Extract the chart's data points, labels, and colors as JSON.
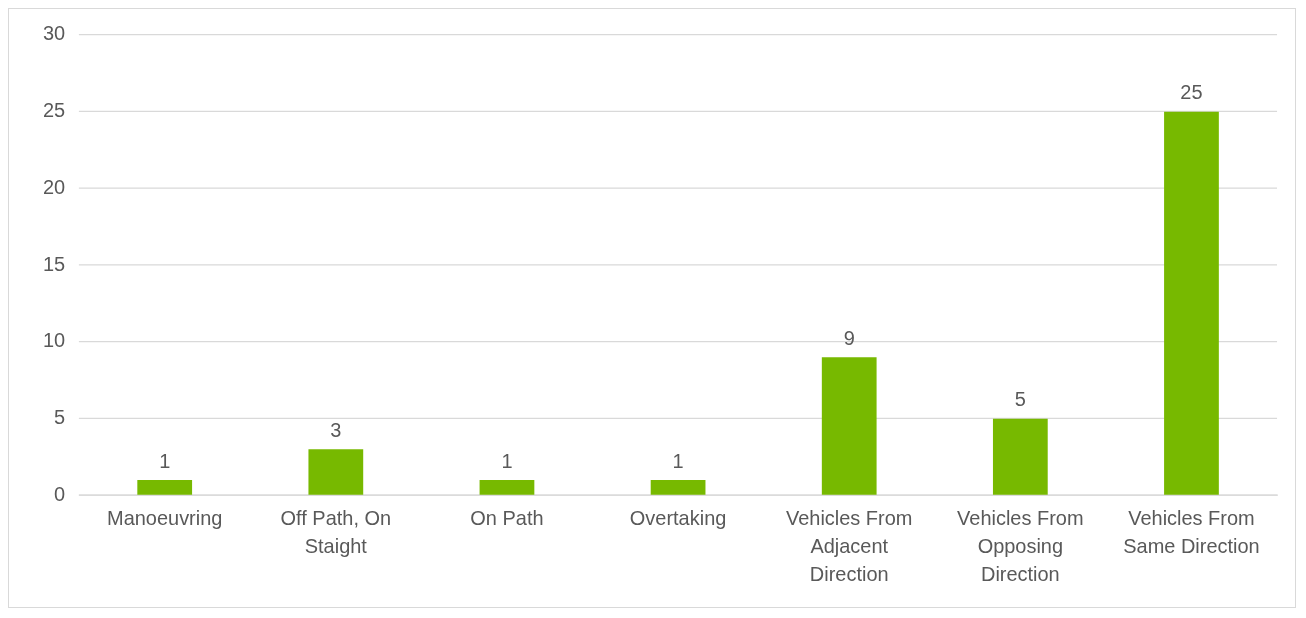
{
  "chart_data": {
    "type": "bar",
    "categories": [
      "Manoeuvring",
      "Off Path, On Staight",
      "On Path",
      "Overtaking",
      "Vehicles From Adjacent Direction",
      "Vehicles From Opposing Direction",
      "Vehicles From Same Direction"
    ],
    "values": [
      1,
      3,
      1,
      1,
      9,
      5,
      25
    ],
    "color": "#77b900",
    "ylim": [
      0,
      30
    ],
    "yticks": [
      0,
      5,
      10,
      15,
      20,
      25,
      30
    ],
    "grid": "y",
    "legend": false,
    "data_labels": true
  }
}
